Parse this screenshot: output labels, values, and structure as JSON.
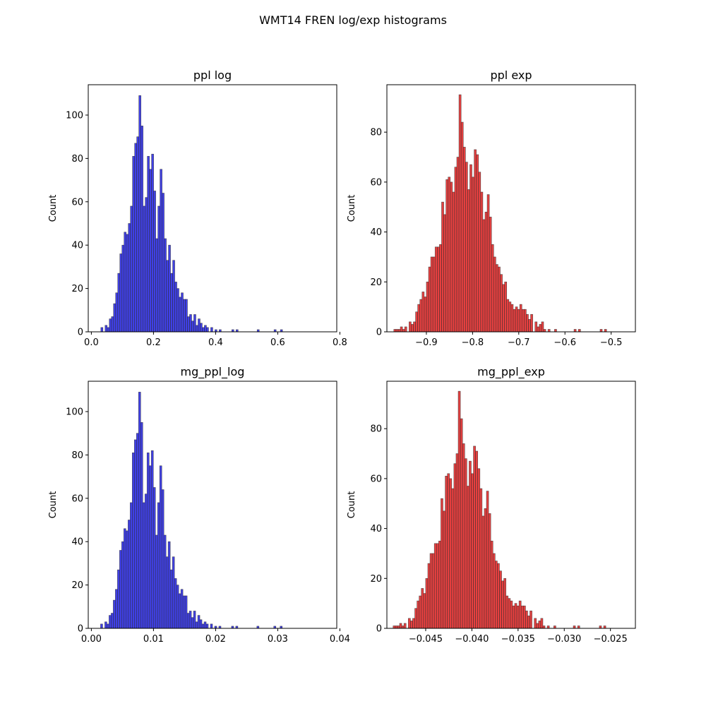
{
  "suptitle": "WMT14 FREN log/exp histograms",
  "colors": {
    "log": "#0000dd",
    "exp": "#dd0000"
  },
  "chart_data": [
    {
      "type": "bar",
      "title": "ppl log",
      "xlabel": "",
      "ylabel": "Count",
      "xlim": [
        -0.01,
        0.79
      ],
      "ylim": [
        0,
        114
      ],
      "xticks": [
        0.0,
        0.2,
        0.4,
        0.6,
        0.8
      ],
      "xtick_labels": [
        "0.0",
        "0.2",
        "0.4",
        "0.6",
        "0.8"
      ],
      "yticks": [
        0,
        20,
        40,
        60,
        80,
        100
      ],
      "ytick_labels": [
        "0",
        "20",
        "40",
        "60",
        "80",
        "100"
      ],
      "bin_start": 0.0305,
      "bin_width": 0.0068,
      "counts": [
        2,
        0,
        3,
        2,
        6,
        7,
        13,
        18,
        27,
        36,
        40,
        46,
        45,
        50,
        58,
        81,
        87,
        90,
        109,
        95,
        58,
        62,
        81,
        75,
        82,
        65,
        43,
        58,
        75,
        64,
        43,
        33,
        40,
        27,
        33,
        23,
        20,
        16,
        18,
        15,
        15,
        7,
        8,
        5,
        8,
        3,
        6,
        4,
        2,
        3,
        2,
        0,
        2,
        0,
        1,
        0,
        1,
        0,
        0,
        0,
        0,
        0,
        1,
        0,
        1,
        0,
        0,
        0,
        0,
        0,
        0,
        0,
        0,
        0,
        1,
        0,
        0,
        0,
        0,
        0,
        0,
        0,
        1,
        0,
        0,
        1,
        0,
        0,
        0,
        0
      ]
    },
    {
      "type": "bar",
      "title": "ppl exp",
      "xlabel": "",
      "ylabel": "Count",
      "xlim": [
        -0.9855,
        -0.4475
      ],
      "ylim": [
        0,
        99
      ],
      "xticks": [
        -0.9,
        -0.8,
        -0.7,
        -0.6,
        -0.5
      ],
      "xtick_labels": [
        "−0.9",
        "−0.8",
        "−0.7",
        "−0.6",
        "−0.5"
      ],
      "yticks": [
        0,
        20,
        40,
        60,
        80
      ],
      "ytick_labels": [
        "0",
        "20",
        "40",
        "60",
        "80"
      ],
      "bin_start": -0.9705,
      "bin_width": 0.0047,
      "counts": [
        1,
        1,
        1,
        2,
        1,
        2,
        0,
        4,
        3,
        4,
        8,
        11,
        13,
        16,
        14,
        20,
        26,
        30,
        30,
        34,
        34,
        35,
        52,
        47,
        61,
        62,
        60,
        56,
        66,
        70,
        95,
        84,
        74,
        68,
        57,
        67,
        62,
        73,
        71,
        64,
        56,
        45,
        48,
        55,
        46,
        35,
        30,
        27,
        26,
        23,
        19,
        20,
        13,
        12,
        11,
        9,
        10,
        9,
        11,
        9,
        9,
        7,
        5,
        7,
        0,
        4,
        2,
        3,
        4,
        1,
        0,
        1,
        0,
        0,
        1,
        0,
        0,
        0,
        0,
        0,
        0,
        0,
        0,
        1,
        0,
        1,
        0,
        0,
        0,
        0,
        0,
        0,
        0,
        0,
        0,
        1,
        0,
        1,
        0
      ]
    },
    {
      "type": "bar",
      "title": "mg_ppl_log",
      "xlabel": "",
      "ylabel": "Count",
      "xlim": [
        -0.0005,
        0.0395
      ],
      "ylim": [
        0,
        114
      ],
      "xticks": [
        0.0,
        0.01,
        0.02,
        0.03,
        0.04
      ],
      "xtick_labels": [
        "0.00",
        "0.01",
        "0.02",
        "0.03",
        "0.04"
      ],
      "yticks": [
        0,
        20,
        40,
        60,
        80,
        100
      ],
      "ytick_labels": [
        "0",
        "20",
        "40",
        "60",
        "80",
        "100"
      ],
      "bin_start": 0.00148,
      "bin_width": 0.00034,
      "counts": [
        2,
        0,
        3,
        2,
        6,
        7,
        13,
        18,
        27,
        36,
        40,
        46,
        45,
        50,
        58,
        81,
        87,
        90,
        109,
        95,
        58,
        62,
        81,
        75,
        82,
        65,
        43,
        58,
        75,
        64,
        43,
        33,
        40,
        27,
        33,
        23,
        20,
        16,
        18,
        15,
        15,
        7,
        8,
        5,
        8,
        3,
        6,
        4,
        2,
        3,
        2,
        0,
        2,
        0,
        1,
        0,
        1,
        0,
        0,
        0,
        0,
        0,
        1,
        0,
        1,
        0,
        0,
        0,
        0,
        0,
        0,
        0,
        0,
        0,
        1,
        0,
        0,
        0,
        0,
        0,
        0,
        0,
        1,
        0,
        0,
        1,
        0,
        0,
        0,
        0
      ]
    },
    {
      "type": "bar",
      "title": "mg_ppl_exp",
      "xlabel": "",
      "ylabel": "Count",
      "xlim": [
        -0.0492,
        -0.0223
      ],
      "ylim": [
        0,
        99
      ],
      "xticks": [
        -0.045,
        -0.04,
        -0.035,
        -0.03,
        -0.025
      ],
      "xtick_labels": [
        "−0.045",
        "−0.040",
        "−0.035",
        "−0.030",
        "−0.025"
      ],
      "yticks": [
        0,
        20,
        40,
        60,
        80
      ],
      "ytick_labels": [
        "0",
        "20",
        "40",
        "60",
        "80"
      ],
      "bin_start": -0.04853,
      "bin_width": 0.000235,
      "counts": [
        1,
        1,
        1,
        2,
        1,
        2,
        0,
        4,
        3,
        4,
        8,
        11,
        13,
        16,
        14,
        20,
        26,
        30,
        30,
        34,
        34,
        35,
        52,
        47,
        61,
        62,
        60,
        56,
        66,
        70,
        95,
        84,
        74,
        68,
        57,
        67,
        62,
        73,
        71,
        64,
        56,
        45,
        48,
        55,
        46,
        35,
        30,
        27,
        26,
        23,
        19,
        20,
        13,
        12,
        11,
        9,
        10,
        9,
        11,
        9,
        9,
        7,
        5,
        7,
        0,
        4,
        2,
        3,
        4,
        1,
        0,
        1,
        0,
        0,
        1,
        0,
        0,
        0,
        0,
        0,
        0,
        0,
        0,
        1,
        0,
        1,
        0,
        0,
        0,
        0,
        0,
        0,
        0,
        0,
        0,
        1,
        0,
        1,
        0
      ]
    }
  ]
}
